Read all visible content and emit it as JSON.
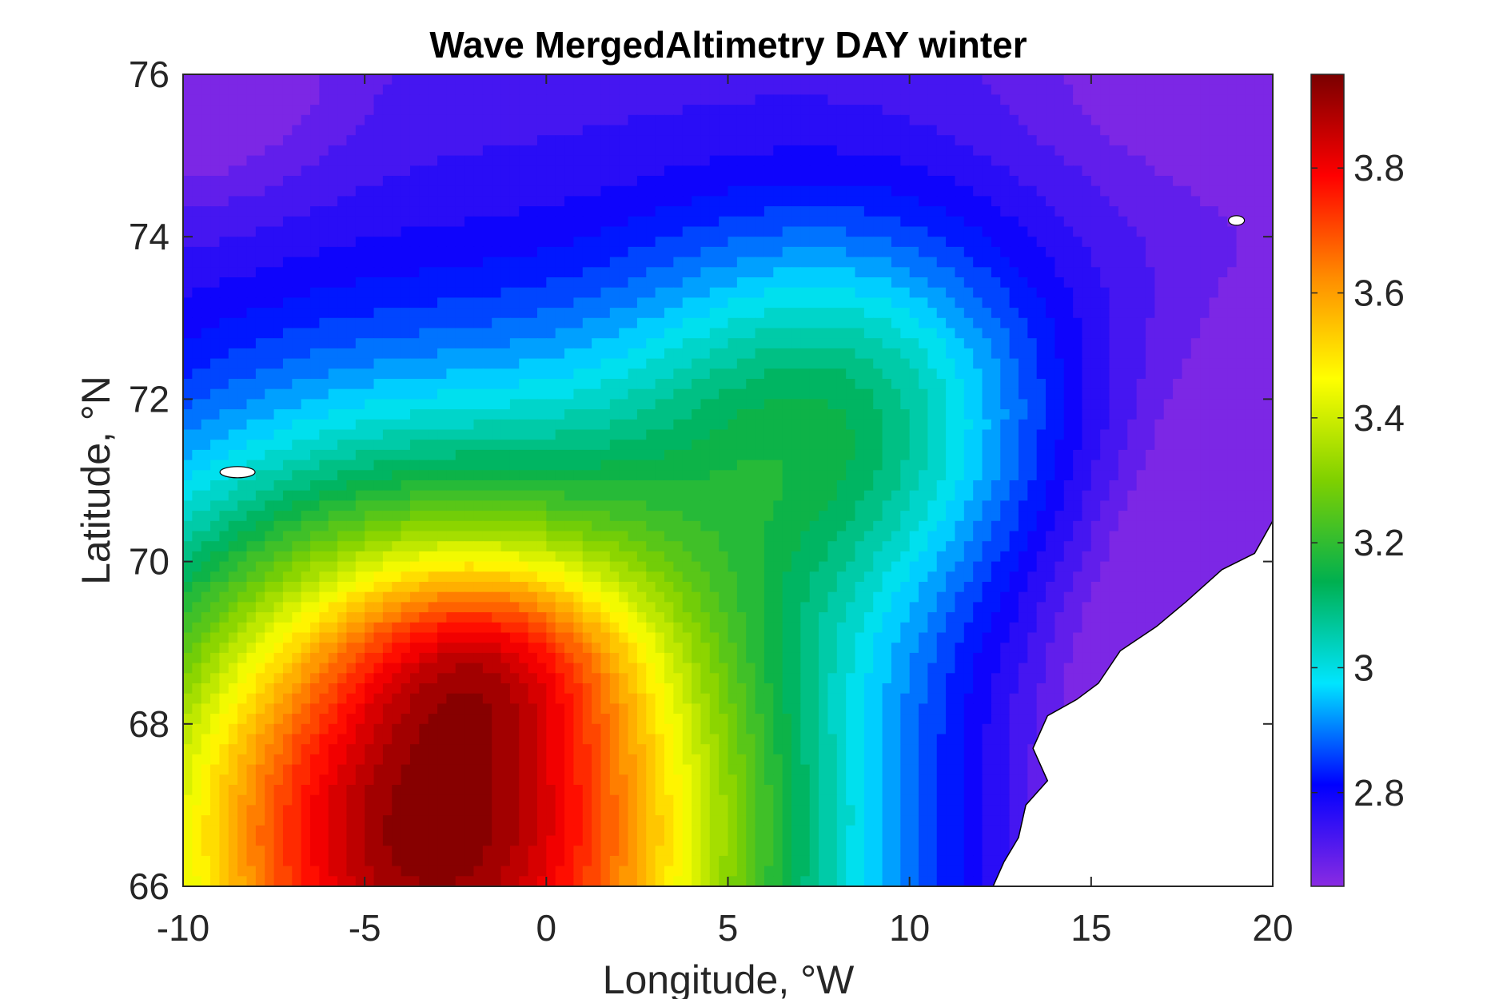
{
  "chart_data": {
    "type": "heatmap",
    "title": "Wave MergedAltimetry DAY winter",
    "xlabel": "Longitude, °W",
    "ylabel": "Latitude, °N",
    "xlim": [
      -10,
      20
    ],
    "ylim": [
      66,
      76
    ],
    "xticks": [
      "-10",
      "-5",
      "0",
      "5",
      "10",
      "15",
      "20"
    ],
    "yticks": [
      "76",
      "74",
      "72",
      "70",
      "68",
      "66"
    ],
    "colorbar": {
      "range": [
        2.65,
        3.95
      ],
      "ticks": [
        "3.8",
        "3.6",
        "3.4",
        "3.2",
        "3",
        "2.8"
      ]
    },
    "colormap": [
      "#8a2be2",
      "#0000ff",
      "#00e5ff",
      "#00b050",
      "#7fd000",
      "#ffff00",
      "#ff8c00",
      "#ff0000",
      "#7a0000"
    ],
    "features": {
      "maximum": {
        "lon": -3.5,
        "lat": 66.2,
        "value": 3.92
      },
      "secondary_maximum": {
        "lon": -1.5,
        "lat": 68.9,
        "value": 3.86
      }
    }
  }
}
